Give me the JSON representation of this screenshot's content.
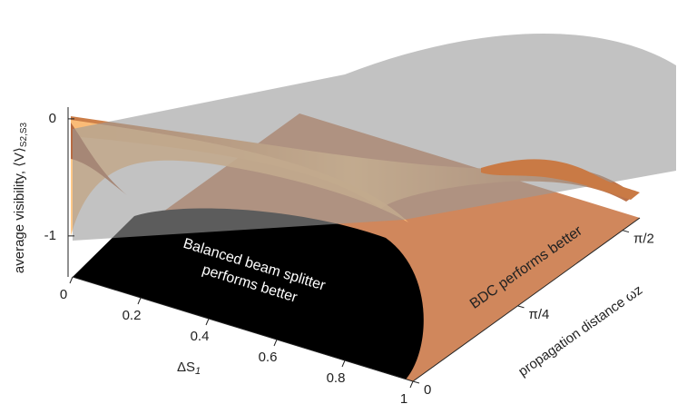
{
  "chart_data": {
    "type": "surface3d",
    "x_label": "ΔS",
    "x_label_subscript": "1",
    "y_label": "propagation distance ωz",
    "z_label": "average visibility, ⟨V⟩",
    "z_label_subscript": "S2,S3",
    "xlim": [
      0,
      1
    ],
    "xticks": [
      0,
      0.2,
      0.4,
      0.6,
      0.8,
      1
    ],
    "ylim": [
      0,
      1.7
    ],
    "yticks": [
      0,
      {
        "value": 0.785398,
        "label": "π/4"
      },
      {
        "value": 1.570796,
        "label": "π/2"
      }
    ],
    "zlim": [
      -1.35,
      0.1
    ],
    "zticks": [
      0,
      -1
    ],
    "annotations": [
      "Balanced beam splitter",
      "performs better",
      "BDC performs better"
    ]
  }
}
